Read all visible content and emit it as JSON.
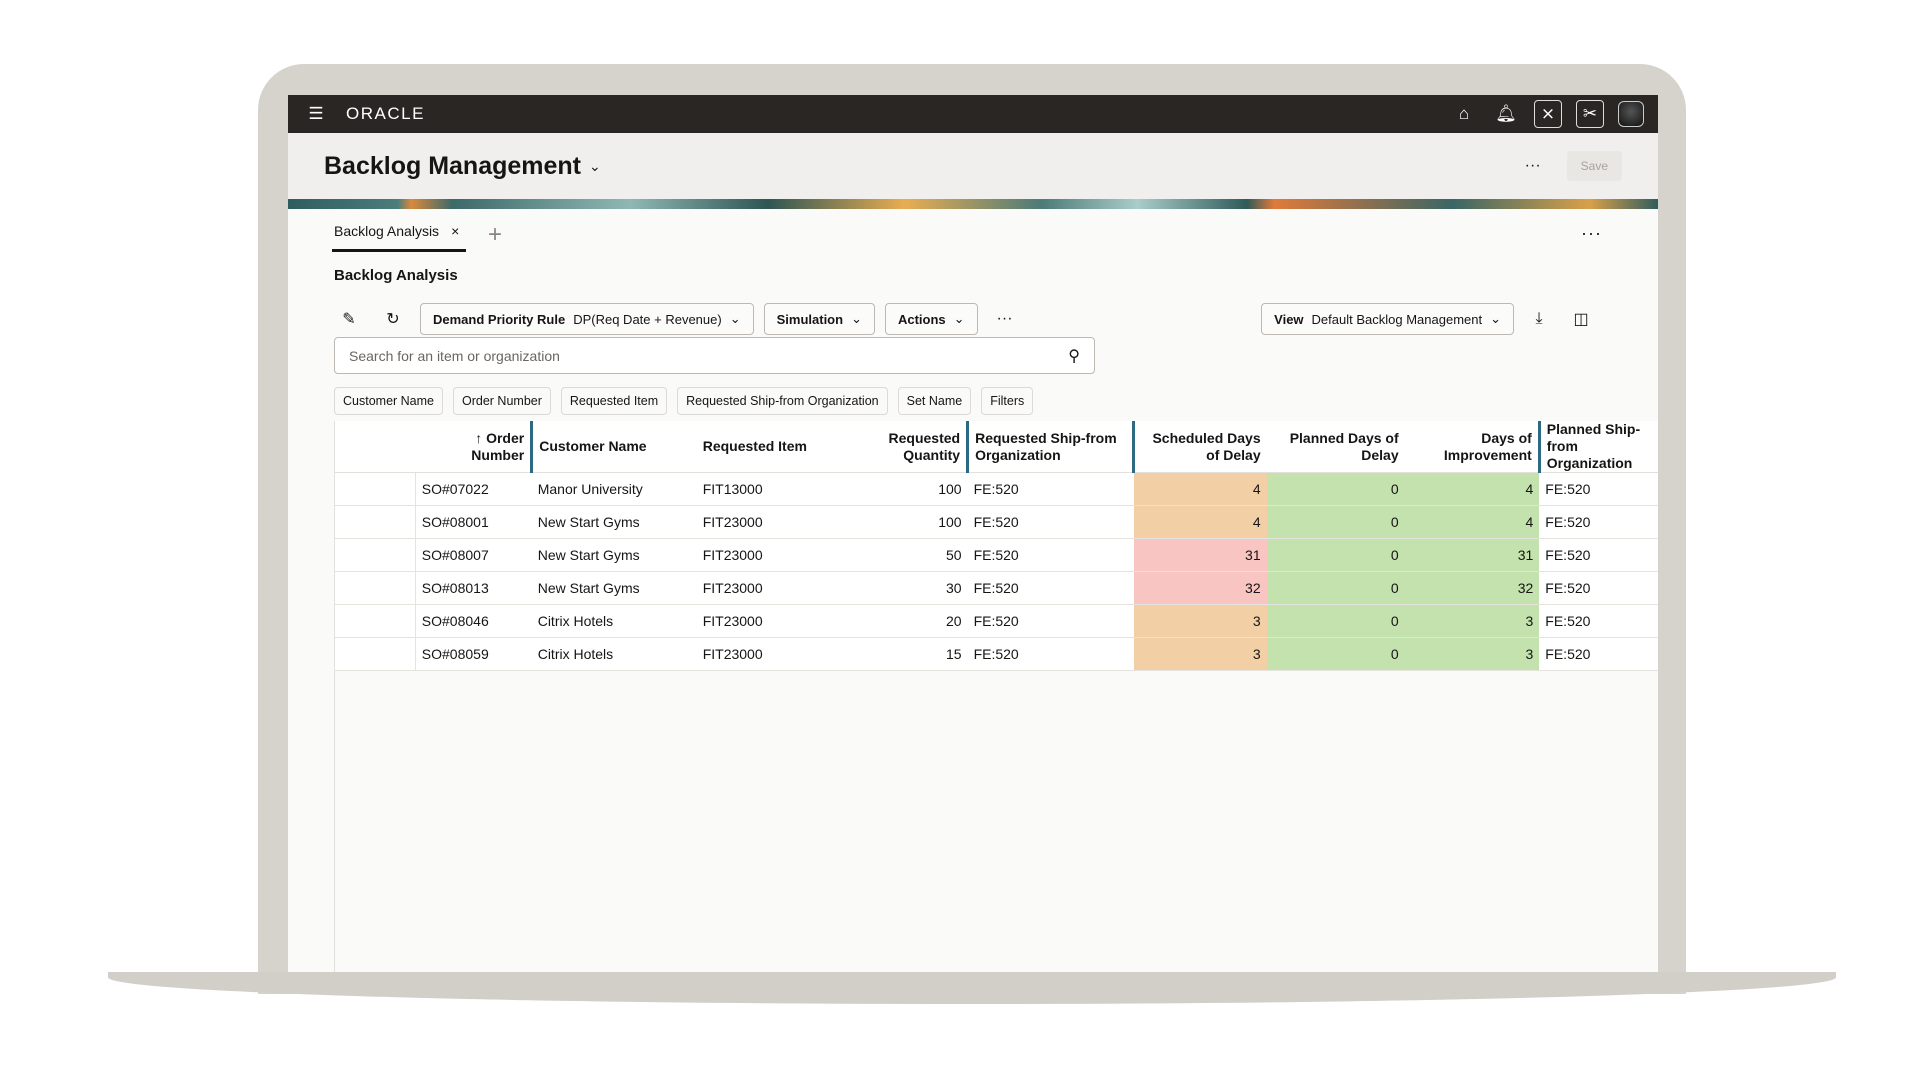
{
  "topbar": {
    "brand": "ORACLE",
    "icons": [
      "menu-icon",
      "home-icon",
      "bell-icon",
      "user-crossed-icon",
      "scissors-icon",
      "avatar"
    ]
  },
  "header": {
    "title": "Backlog Management",
    "more": "···",
    "save_label": "Save"
  },
  "tabs": [
    {
      "label": "Backlog Analysis",
      "close": "×"
    }
  ],
  "add_tab": "+",
  "section": {
    "title": "Backlog Analysis",
    "more": "···"
  },
  "toolbar": {
    "priority_label": "Demand Priority Rule",
    "priority_value": "DP(Req Date + Revenue)",
    "simulation": "Simulation",
    "actions": "Actions",
    "more": "···",
    "view_label": "View",
    "view_value": "Default Backlog Management"
  },
  "search": {
    "placeholder": "Search for an item or organization"
  },
  "chips": [
    "Customer Name",
    "Order Number",
    "Requested Item",
    "Requested Ship-from Organization",
    "Set Name",
    "Filters"
  ],
  "table": {
    "columns": [
      "",
      "↑ Order Number",
      "Customer Name",
      "Requested Item",
      "Requested Quantity",
      "Requested Ship-from Organization",
      "Scheduled Days of Delay",
      "Planned Days of Delay",
      "Days of Improvement",
      "Planned Ship-from Organization"
    ],
    "rows": [
      [
        "SO#07022",
        "Manor University",
        "FIT13000",
        "100",
        "FE:520",
        "4",
        "0",
        "4",
        "FE:520"
      ],
      [
        "SO#08001",
        "New Start Gyms",
        "FIT23000",
        "100",
        "FE:520",
        "4",
        "0",
        "4",
        "FE:520"
      ],
      [
        "SO#08007",
        "New Start Gyms",
        "FIT23000",
        "50",
        "FE:520",
        "31",
        "0",
        "31",
        "FE:520"
      ],
      [
        "SO#08013",
        "New Start Gyms",
        "FIT23000",
        "30",
        "FE:520",
        "32",
        "0",
        "32",
        "FE:520"
      ],
      [
        "SO#08046",
        "Citrix Hotels",
        "FIT23000",
        "20",
        "FE:520",
        "3",
        "0",
        "3",
        "FE:520"
      ],
      [
        "SO#08059",
        "Citrix Hotels",
        "FIT23000",
        "15",
        "FE:520",
        "3",
        "0",
        "3",
        "FE:520"
      ]
    ],
    "delay_colors": {
      "moderate": "#f3cfa6",
      "severe": "#f9c5c3",
      "good": "#c4e2ae"
    }
  }
}
